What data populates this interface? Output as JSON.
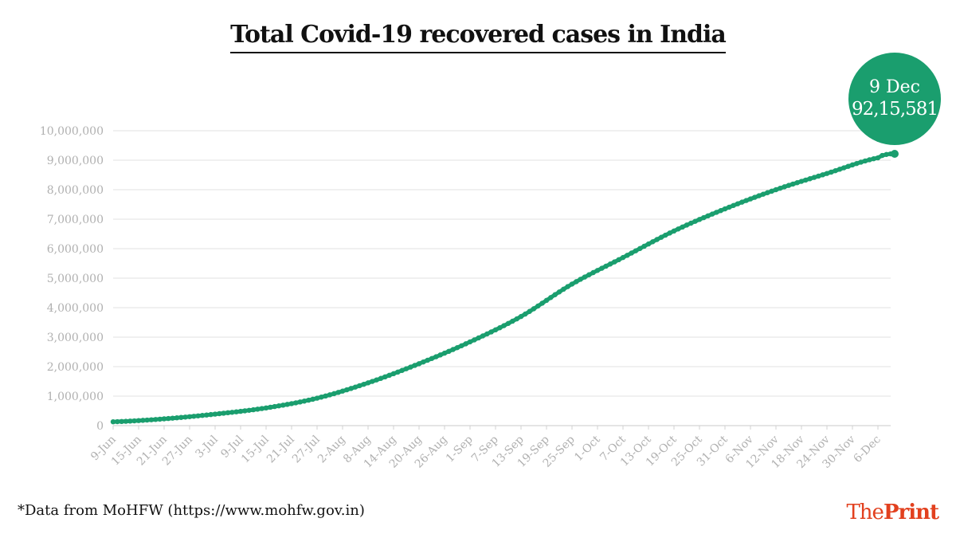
{
  "chart_data": {
    "type": "line",
    "title": "Total Covid-19 recovered cases in India",
    "x_tick_labels": [
      "9-Jun",
      "15-Jun",
      "21-Jun",
      "27-Jun",
      "3-Jul",
      "9-Jul",
      "15-Jul",
      "21-Jul",
      "27-Jul",
      "2-Aug",
      "8-Aug",
      "14-Aug",
      "20-Aug",
      "26-Aug",
      "1-Sep",
      "7-Sep",
      "13-Sep",
      "19-Sep",
      "25-Sep",
      "1-Oct",
      "7-Oct",
      "13-Oct",
      "19-Oct",
      "25-Oct",
      "31-Oct",
      "6-Nov",
      "12-Nov",
      "18-Nov",
      "24-Nov",
      "30-Nov",
      "6-Dec"
    ],
    "x_start": "2020-06-09",
    "x_end": "2020-12-09",
    "y_ticks": [
      "0",
      "1,000,000",
      "2,000,000",
      "3,000,000",
      "4,000,000",
      "5,000,000",
      "6,000,000",
      "7,000,000",
      "8,000,000",
      "9,000,000",
      "10,000,000"
    ],
    "ylim": [
      0,
      10000000
    ],
    "grid": true,
    "series": [
      {
        "color": "#1a9e6e",
        "points": [
          [
            "9-Jun",
            130000
          ],
          [
            "21-Jun",
            230000
          ],
          [
            "3-Jul",
            390000
          ],
          [
            "15-Jul",
            600000
          ],
          [
            "27-Jul",
            930000
          ],
          [
            "8-Aug",
            1450000
          ],
          [
            "20-Aug",
            2100000
          ],
          [
            "1-Sep",
            2840000
          ],
          [
            "13-Sep",
            3700000
          ],
          [
            "25-Sep",
            4800000
          ],
          [
            "7-Oct",
            5700000
          ],
          [
            "19-Oct",
            6600000
          ],
          [
            "31-Oct",
            7350000
          ],
          [
            "12-Nov",
            8000000
          ],
          [
            "24-Nov",
            8550000
          ],
          [
            "6-Dec",
            9080000
          ],
          [
            "9-Dec",
            9215581
          ]
        ]
      }
    ],
    "callout": {
      "date": "9 Dec",
      "value": "92,15,581"
    }
  },
  "footnote": "*Data from MoHFW (https://www.mohfw.gov.in)",
  "logo": {
    "the": "The",
    "print": "Print"
  },
  "colors": {
    "line": "#1a9e6e",
    "callout_bg": "#1a9e6e",
    "grid": "#e6e6e6",
    "axis_text": "#b0b0b0",
    "logo": "#e2401e"
  }
}
